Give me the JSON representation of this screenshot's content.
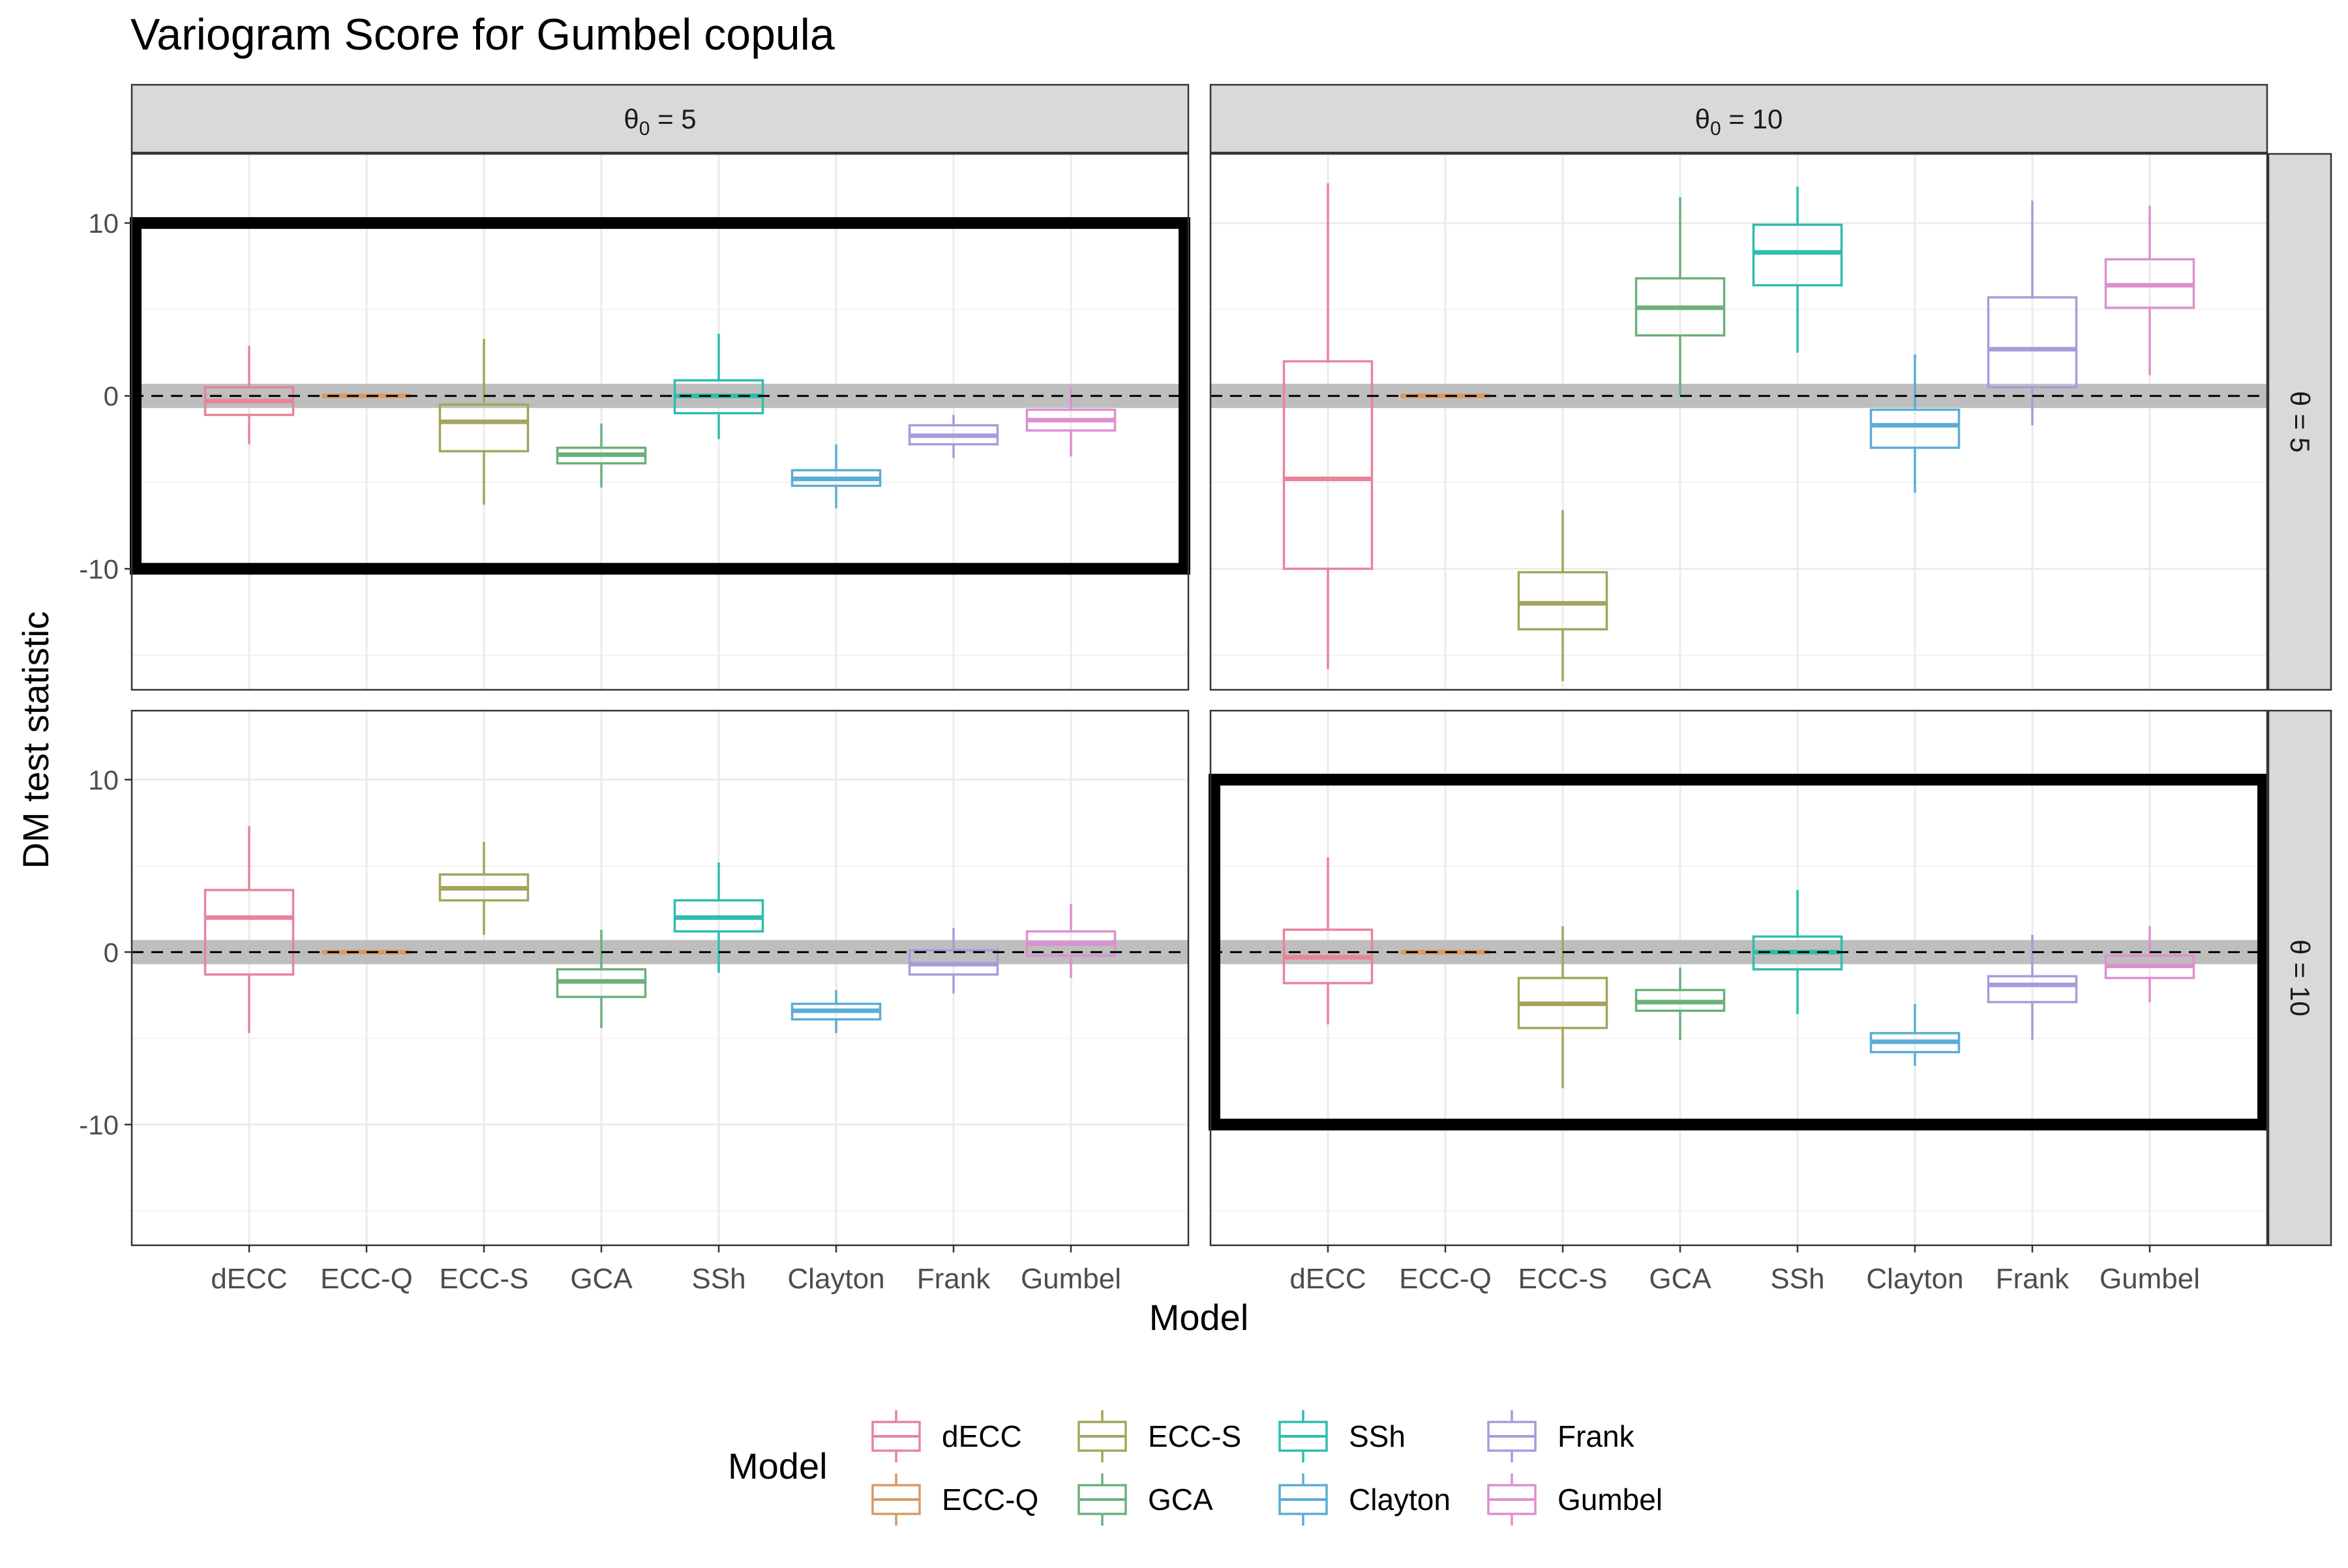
{
  "chart_data": {
    "type": "boxplot",
    "title": "Variogram Score for Gumbel copula",
    "xlabel": "Model",
    "ylabel": "DM test statistic",
    "ylim": [
      -17,
      14
    ],
    "yticks": [
      -10,
      0,
      10
    ],
    "grid": true,
    "legend_placement": "bottom",
    "legend_title": "Model",
    "categories": [
      "dECC",
      "ECC-Q",
      "ECC-S",
      "GCA",
      "SSh",
      "Clayton",
      "Frank",
      "Gumbel"
    ],
    "colors": {
      "dECC": "#E8849A",
      "ECC-Q": "#D99A63",
      "ECC-S": "#A3A55A",
      "GCA": "#6BB07A",
      "SSh": "#2EBDAE",
      "Clayton": "#5AADD6",
      "Frank": "#A99BDB",
      "Gumbel": "#DD8FD0"
    },
    "facets": {
      "columns": [
        {
          "label_main": "θ",
          "label_sub": "0",
          "label_tail": " = 5"
        },
        {
          "label_main": "θ",
          "label_sub": "0",
          "label_tail": " = 10"
        }
      ],
      "rows": [
        {
          "label": "θ = 5"
        },
        {
          "label": "θ = 10"
        }
      ]
    },
    "panels": [
      {
        "row": 0,
        "col": 0,
        "highlight": [
          -10,
          10
        ],
        "boxes": [
          {
            "model": "dECC",
            "min": -2.8,
            "q1": -1.1,
            "median": -0.3,
            "q3": 0.5,
            "max": 2.9
          },
          {
            "model": "ECC-Q",
            "min": 0,
            "q1": 0,
            "median": 0,
            "q3": 0,
            "max": 0
          },
          {
            "model": "ECC-S",
            "min": -6.3,
            "q1": -3.2,
            "median": -1.5,
            "q3": -0.5,
            "max": 3.3
          },
          {
            "model": "GCA",
            "min": -5.3,
            "q1": -3.9,
            "median": -3.4,
            "q3": -3.0,
            "max": -1.6
          },
          {
            "model": "SSh",
            "min": -2.5,
            "q1": -1.0,
            "median": 0.0,
            "q3": 0.9,
            "max": 3.6
          },
          {
            "model": "Clayton",
            "min": -6.5,
            "q1": -5.2,
            "median": -4.8,
            "q3": -4.3,
            "max": -2.8
          },
          {
            "model": "Frank",
            "min": -3.6,
            "q1": -2.8,
            "median": -2.3,
            "q3": -1.7,
            "max": -1.1
          },
          {
            "model": "Gumbel",
            "min": -3.5,
            "q1": -2.0,
            "median": -1.4,
            "q3": -0.8,
            "max": 0.5
          }
        ]
      },
      {
        "row": 0,
        "col": 1,
        "highlight": null,
        "boxes": [
          {
            "model": "dECC",
            "min": -15.8,
            "q1": -10.0,
            "median": -4.8,
            "q3": 2.0,
            "max": 12.3
          },
          {
            "model": "ECC-Q",
            "min": 0,
            "q1": 0,
            "median": 0,
            "q3": 0,
            "max": 0
          },
          {
            "model": "ECC-S",
            "min": -16.5,
            "q1": -13.5,
            "median": -12.0,
            "q3": -10.2,
            "max": -6.6
          },
          {
            "model": "GCA",
            "min": 0.0,
            "q1": 3.5,
            "median": 5.1,
            "q3": 6.8,
            "max": 11.5
          },
          {
            "model": "SSh",
            "min": 2.5,
            "q1": 6.4,
            "median": 8.3,
            "q3": 9.9,
            "max": 12.1
          },
          {
            "model": "Clayton",
            "min": -5.6,
            "q1": -3.0,
            "median": -1.7,
            "q3": -0.8,
            "max": 2.4
          },
          {
            "model": "Frank",
            "min": -1.7,
            "q1": 0.5,
            "median": 2.7,
            "q3": 5.7,
            "max": 11.3
          },
          {
            "model": "Gumbel",
            "min": 1.2,
            "q1": 5.1,
            "median": 6.4,
            "q3": 7.9,
            "max": 11.0
          }
        ]
      },
      {
        "row": 1,
        "col": 0,
        "highlight": null,
        "boxes": [
          {
            "model": "dECC",
            "min": -4.7,
            "q1": -1.3,
            "median": 2.0,
            "q3": 3.6,
            "max": 7.3
          },
          {
            "model": "ECC-Q",
            "min": 0,
            "q1": 0,
            "median": 0,
            "q3": 0,
            "max": 0
          },
          {
            "model": "ECC-S",
            "min": 1.0,
            "q1": 3.0,
            "median": 3.7,
            "q3": 4.5,
            "max": 6.4
          },
          {
            "model": "GCA",
            "min": -4.4,
            "q1": -2.6,
            "median": -1.7,
            "q3": -1.0,
            "max": 1.3
          },
          {
            "model": "SSh",
            "min": -1.2,
            "q1": 1.2,
            "median": 2.0,
            "q3": 3.0,
            "max": 5.2
          },
          {
            "model": "Clayton",
            "min": -4.7,
            "q1": -3.9,
            "median": -3.4,
            "q3": -3.0,
            "max": -2.2
          },
          {
            "model": "Frank",
            "min": -2.4,
            "q1": -1.3,
            "median": -0.7,
            "q3": 0.1,
            "max": 1.4
          },
          {
            "model": "Gumbel",
            "min": -1.5,
            "q1": -0.2,
            "median": 0.5,
            "q3": 1.2,
            "max": 2.8
          }
        ]
      },
      {
        "row": 1,
        "col": 1,
        "highlight": [
          -10,
          10
        ],
        "boxes": [
          {
            "model": "dECC",
            "min": -4.2,
            "q1": -1.8,
            "median": -0.3,
            "q3": 1.3,
            "max": 5.5
          },
          {
            "model": "ECC-Q",
            "min": 0,
            "q1": 0,
            "median": 0,
            "q3": 0,
            "max": 0
          },
          {
            "model": "ECC-S",
            "min": -7.9,
            "q1": -4.4,
            "median": -3.0,
            "q3": -1.5,
            "max": 1.5
          },
          {
            "model": "GCA",
            "min": -5.1,
            "q1": -3.4,
            "median": -2.9,
            "q3": -2.2,
            "max": -0.9
          },
          {
            "model": "SSh",
            "min": -3.6,
            "q1": -1.0,
            "median": 0.0,
            "q3": 0.9,
            "max": 3.6
          },
          {
            "model": "Clayton",
            "min": -6.6,
            "q1": -5.8,
            "median": -5.2,
            "q3": -4.7,
            "max": -3.0
          },
          {
            "model": "Frank",
            "min": -5.1,
            "q1": -2.9,
            "median": -1.9,
            "q3": -1.4,
            "max": 1.0
          },
          {
            "model": "Gumbel",
            "min": -2.9,
            "q1": -1.5,
            "median": -0.8,
            "q3": -0.2,
            "max": 1.5
          }
        ]
      }
    ]
  }
}
